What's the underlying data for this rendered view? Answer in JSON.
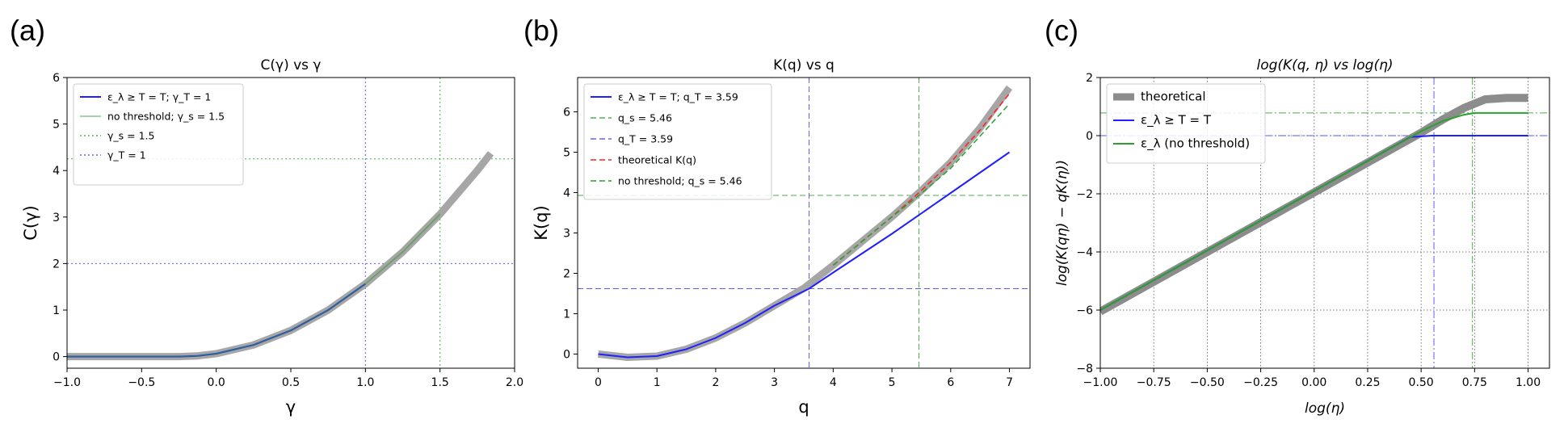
{
  "figure": {
    "panel_labels": [
      "(a)",
      "(b)",
      "(c)"
    ]
  },
  "chart_data": [
    {
      "type": "line",
      "panel": "(a)",
      "title": "C(γ) vs γ",
      "xlabel": "γ",
      "ylabel": "C(γ)",
      "xlim": [
        -1.0,
        2.0
      ],
      "ylim": [
        -0.25,
        6.0
      ],
      "xticks": [
        -1.0,
        -0.5,
        0.0,
        0.5,
        1.0,
        1.5,
        2.0
      ],
      "xtick_labels": [
        "−1.0",
        "−0.5",
        "0.0",
        "0.5",
        "1.0",
        "1.5",
        "2.0"
      ],
      "yticks": [
        0,
        1,
        2,
        3,
        4,
        5,
        6
      ],
      "ytick_labels": [
        "0",
        "1",
        "2",
        "3",
        "4",
        "5",
        "6"
      ],
      "grid": false,
      "legend_position": "top-left",
      "series": [
        {
          "name": "",
          "color": "#a6a6a6",
          "width": 9,
          "x": [
            -1.0,
            -0.5,
            -0.25,
            -0.125,
            0.0,
            0.25,
            0.5,
            0.75,
            1.0,
            1.25,
            1.5,
            1.75,
            1.84
          ],
          "y": [
            0.0,
            0.0,
            0.0,
            0.016,
            0.063,
            0.25,
            0.563,
            1.0,
            1.563,
            2.25,
            3.063,
            4.0,
            4.37
          ]
        },
        {
          "name": "ε_λ ≥ T = T; γ_T = 1",
          "color": "#1f1fff",
          "width": 2,
          "x": [
            -1.0,
            -0.5,
            -0.25,
            -0.125,
            0.0,
            0.25,
            0.5,
            0.75,
            1.0
          ],
          "y": [
            0.0,
            0.0,
            0.0,
            0.016,
            0.063,
            0.25,
            0.563,
            1.0,
            1.563
          ]
        },
        {
          "name": "no threshold; γ_s = 1.5",
          "color": "#2ca02c",
          "width": 1.5,
          "alpha": 0.6,
          "x": [
            -1.0,
            -0.5,
            -0.25,
            -0.125,
            0.0,
            0.25,
            0.5,
            0.75,
            1.0,
            1.25,
            1.5
          ],
          "y": [
            0.0,
            0.0,
            0.0,
            0.016,
            0.063,
            0.25,
            0.563,
            1.0,
            1.563,
            2.25,
            3.063
          ]
        },
        {
          "name": "γ_s = 1.5",
          "color": "#2ca02c",
          "dash": "dotted",
          "vline": 1.5,
          "hline": 4.25
        },
        {
          "name": "γ_T = 1",
          "color": "#4040ff",
          "dash": "dotted",
          "vline": 1.0,
          "hline": 2.0
        }
      ]
    },
    {
      "type": "line",
      "panel": "(b)",
      "title": "K(q) vs q",
      "xlabel": "q",
      "ylabel": "K(q)",
      "xlim": [
        -0.35,
        7.35
      ],
      "ylim": [
        -0.35,
        6.85
      ],
      "xticks": [
        0,
        1,
        2,
        3,
        4,
        5,
        6,
        7
      ],
      "xtick_labels": [
        "0",
        "1",
        "2",
        "3",
        "4",
        "5",
        "6",
        "7"
      ],
      "yticks": [
        0,
        1,
        2,
        3,
        4,
        5,
        6
      ],
      "ytick_labels": [
        "0",
        "1",
        "2",
        "3",
        "4",
        "5",
        "6"
      ],
      "grid": false,
      "legend_position": "top-left",
      "series": [
        {
          "name": "",
          "color": "#a6a6a6",
          "width": 9,
          "x": [
            0,
            0.5,
            1,
            1.5,
            2,
            2.5,
            3,
            3.5,
            4,
            4.5,
            5,
            5.5,
            6,
            6.5,
            7
          ],
          "y": [
            0.0,
            -0.08,
            -0.05,
            0.12,
            0.4,
            0.77,
            1.2,
            1.63,
            2.2,
            2.8,
            3.4,
            4.05,
            4.75,
            5.6,
            6.6
          ]
        },
        {
          "name": "ε_λ ≥ T = T; q_T = 3.59",
          "color": "#1f1fff",
          "width": 2,
          "x": [
            0,
            0.5,
            1,
            1.5,
            2,
            2.5,
            3,
            3.59,
            4,
            5,
            6,
            7
          ],
          "y": [
            0.0,
            -0.08,
            -0.05,
            0.12,
            0.4,
            0.77,
            1.2,
            1.62,
            2.02,
            2.98,
            3.99,
            5.0
          ]
        },
        {
          "name": "q_s = 5.46",
          "color": "#2ca02c",
          "dash": "dashed",
          "vline": 5.46,
          "hline": 3.93
        },
        {
          "name": "q_T = 3.59",
          "color": "#4040ff",
          "dash": "dashed",
          "vline": 3.59,
          "hline": 1.62
        },
        {
          "name": "theoretical K(q)",
          "color": "#ff2020",
          "dash": "dashed",
          "width": 1.5,
          "x": [
            4,
            4.5,
            5,
            5.5,
            6,
            6.5,
            7
          ],
          "y": [
            2.2,
            2.8,
            3.4,
            4.05,
            4.75,
            5.55,
            6.45
          ]
        },
        {
          "name": "no threshold; q_s = 5.46",
          "color": "#2ca02c",
          "dash": "dashed",
          "width": 1.5,
          "x": [
            4,
            4.5,
            5,
            5.46,
            6,
            6.5,
            7
          ],
          "y": [
            2.2,
            2.8,
            3.4,
            3.93,
            4.6,
            5.4,
            6.2
          ]
        }
      ]
    },
    {
      "type": "line",
      "panel": "(c)",
      "title": "log(K(q, η) vs log(η)",
      "xlabel": "log(η)",
      "ylabel": "log(K(qη) − qK(η))",
      "xlim": [
        -1.0,
        1.1
      ],
      "ylim": [
        -8,
        2
      ],
      "xticks": [
        -1.0,
        -0.75,
        -0.5,
        -0.25,
        0.0,
        0.25,
        0.5,
        0.75,
        1.0
      ],
      "xtick_labels": [
        "−1.00",
        "−0.75",
        "−0.50",
        "−0.25",
        "0.00",
        "0.25",
        "0.50",
        "0.75",
        "1.00"
      ],
      "yticks": [
        -8,
        -6,
        -4,
        -2,
        0,
        2
      ],
      "ytick_labels": [
        "−8",
        "−6",
        "−4",
        "−2",
        "0",
        "2"
      ],
      "grid": true,
      "legend_position": "top-left",
      "series": [
        {
          "name": "theoretical",
          "color": "#8c8c8c",
          "width": 10,
          "x": [
            -1.0,
            -0.5,
            0.0,
            0.5,
            0.6,
            0.7,
            0.8,
            0.9,
            1.0
          ],
          "y": [
            -6.05,
            -4.0,
            -1.95,
            0.1,
            0.55,
            0.95,
            1.25,
            1.3,
            1.3
          ]
        },
        {
          "name": "ε_λ ≥ T = T",
          "color": "#1f1fff",
          "width": 2,
          "x": [
            -1.0,
            -0.5,
            0.0,
            0.45,
            0.55,
            0.7,
            1.0
          ],
          "y": [
            -6.0,
            -3.95,
            -1.9,
            -0.05,
            0.0,
            0.0,
            0.0
          ]
        },
        {
          "name": "ε_λ (no threshold)",
          "color": "#2ca02c",
          "width": 2,
          "x": [
            -1.0,
            -0.5,
            0.0,
            0.5,
            0.6,
            0.7,
            0.75,
            1.0
          ],
          "y": [
            -6.0,
            -3.95,
            -1.9,
            0.15,
            0.5,
            0.72,
            0.78,
            0.78
          ]
        },
        {
          "name": "",
          "color": "#4040ff",
          "dash": "dashdot",
          "vline": 0.56,
          "hline": 0.0
        },
        {
          "name": "",
          "color": "#2ca02c",
          "dash": "dashdot",
          "vline": 0.74,
          "hline": 0.78
        }
      ]
    }
  ]
}
